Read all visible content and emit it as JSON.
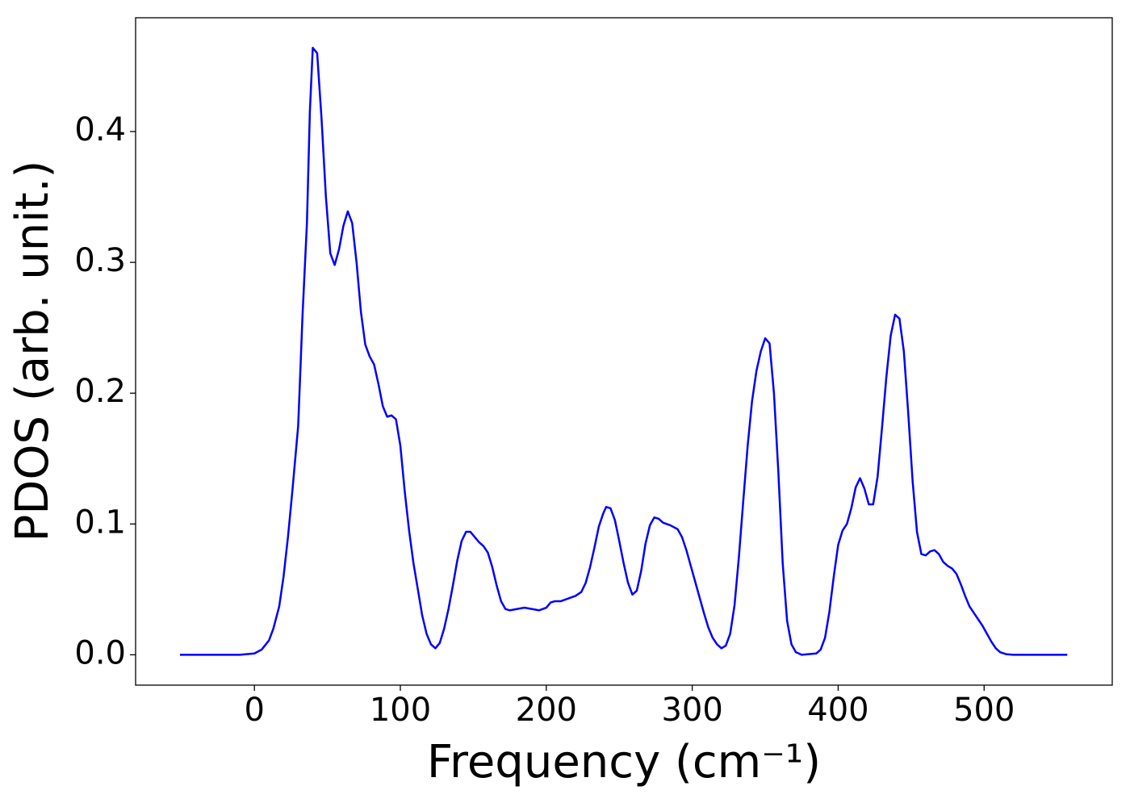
{
  "chart_data": {
    "type": "line",
    "xlabel": "Frequency (cm⁻¹)",
    "ylabel": "PDOS (arb. unit.)",
    "xlim": [
      -81.4,
      587.8
    ],
    "ylim": [
      -0.0232,
      0.487
    ],
    "xticks": [
      0,
      100,
      200,
      300,
      400,
      500
    ],
    "yticks": [
      {
        "value": 0,
        "label": "0.0"
      },
      0.1,
      0.2,
      0.3,
      0.4
    ],
    "grid": false,
    "x": [
      -51,
      -10,
      0,
      5,
      10,
      13,
      17,
      20,
      23,
      26,
      30,
      33,
      36,
      38,
      40,
      43,
      46,
      49,
      52,
      55,
      58,
      61,
      64,
      67,
      70,
      73,
      76,
      79,
      82,
      85,
      88,
      91,
      94,
      97,
      100,
      103,
      106,
      109,
      112,
      115,
      118,
      121,
      124,
      127,
      130,
      133,
      136,
      139,
      142,
      145,
      148,
      151,
      154,
      157,
      160,
      163,
      166,
      169,
      172,
      175,
      180,
      185,
      190,
      195,
      200,
      203,
      206,
      210,
      215,
      220,
      224,
      227,
      230,
      233,
      236,
      239,
      241,
      244,
      247,
      250,
      253,
      256,
      259,
      262,
      265,
      268,
      271,
      274,
      277,
      280,
      285,
      290,
      293,
      296,
      299,
      302,
      305,
      308,
      311,
      314,
      317,
      320,
      323,
      326,
      329,
      332,
      335,
      338,
      341,
      344,
      347,
      350,
      353,
      356,
      359,
      362,
      365,
      368,
      371,
      375,
      385,
      388,
      391,
      394,
      397,
      400,
      403,
      406,
      409,
      412,
      415,
      418,
      421,
      424,
      427,
      430,
      433,
      436,
      439,
      442,
      445,
      448,
      451,
      454,
      457,
      460,
      463,
      466,
      469,
      472,
      475,
      478,
      481,
      484,
      487,
      490,
      493,
      496,
      499,
      502,
      505,
      508,
      511,
      515,
      520,
      557
    ],
    "series": [
      {
        "color": "#0000ff",
        "values": [
          0,
          0,
          0.001,
          0.004,
          0.011,
          0.02,
          0.037,
          0.06,
          0.09,
          0.125,
          0.175,
          0.26,
          0.33,
          0.415,
          0.464,
          0.46,
          0.41,
          0.35,
          0.307,
          0.298,
          0.31,
          0.328,
          0.339,
          0.33,
          0.3,
          0.262,
          0.237,
          0.228,
          0.222,
          0.207,
          0.19,
          0.182,
          0.183,
          0.18,
          0.16,
          0.125,
          0.095,
          0.07,
          0.05,
          0.03,
          0.016,
          0.008,
          0.005,
          0.009,
          0.02,
          0.035,
          0.053,
          0.072,
          0.087,
          0.094,
          0.094,
          0.09,
          0.086,
          0.083,
          0.078,
          0.067,
          0.053,
          0.041,
          0.035,
          0.034,
          0.035,
          0.036,
          0.035,
          0.034,
          0.036,
          0.04,
          0.041,
          0.041,
          0.043,
          0.045,
          0.048,
          0.055,
          0.067,
          0.082,
          0.098,
          0.108,
          0.113,
          0.112,
          0.103,
          0.087,
          0.07,
          0.055,
          0.046,
          0.049,
          0.064,
          0.085,
          0.099,
          0.105,
          0.104,
          0.101,
          0.099,
          0.096,
          0.09,
          0.08,
          0.068,
          0.056,
          0.044,
          0.032,
          0.021,
          0.013,
          0.008,
          0.005,
          0.007,
          0.016,
          0.038,
          0.075,
          0.118,
          0.16,
          0.194,
          0.217,
          0.232,
          0.242,
          0.238,
          0.2,
          0.14,
          0.07,
          0.026,
          0.008,
          0.002,
          0,
          0.001,
          0.004,
          0.013,
          0.033,
          0.06,
          0.084,
          0.095,
          0.1,
          0.112,
          0.128,
          0.135,
          0.127,
          0.115,
          0.115,
          0.136,
          0.173,
          0.212,
          0.244,
          0.26,
          0.257,
          0.232,
          0.185,
          0.133,
          0.094,
          0.077,
          0.076,
          0.079,
          0.08,
          0.077,
          0.071,
          0.068,
          0.066,
          0.062,
          0.054,
          0.045,
          0.037,
          0.032,
          0.027,
          0.022,
          0.016,
          0.01,
          0.005,
          0.002,
          0.0005,
          0,
          0
        ]
      }
    ]
  }
}
